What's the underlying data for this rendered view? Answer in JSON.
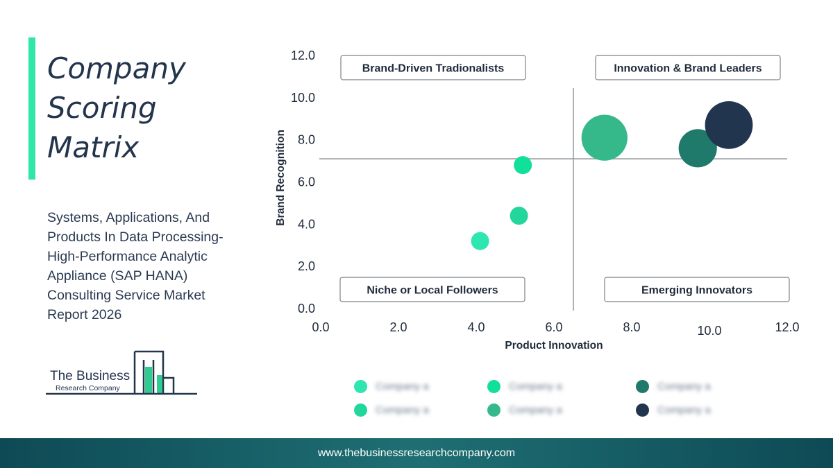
{
  "header": {
    "title_lines": [
      "Company",
      "Scoring",
      "Matrix"
    ],
    "subtitle_lines": [
      "Systems, Applications, And",
      "Products In Data Processing-",
      "High-Performance Analytic",
      "Appliance (SAP HANA)",
      "Consulting Service Market",
      "Report 2026"
    ]
  },
  "logo": {
    "line1": "The Business",
    "line2": "Research Company"
  },
  "colors": {
    "accent": "#2ee6a6",
    "dark_navy": "#23344d",
    "footer": "#0e4a55"
  },
  "chart_data": {
    "type": "scatter",
    "variant": "bubble",
    "xlabel": "Product Innovation",
    "ylabel": "Brand Recognition",
    "xlim": [
      0,
      12
    ],
    "ylim": [
      0,
      12
    ],
    "x_ticks": [
      "0.0",
      "2.0",
      "4.0",
      "6.0",
      "8.0",
      "10.0",
      "12.0"
    ],
    "y_ticks": [
      "0.0",
      "2.0",
      "4.0",
      "6.0",
      "8.0",
      "10.0",
      "12.0"
    ],
    "divider_x": 6.5,
    "divider_y": 7.1,
    "quadrants": {
      "top_left": "Brand-Driven Tradionalists",
      "top_right": "Innovation & Brand Leaders",
      "bottom_left": "Niche or Local Followers",
      "bottom_right": "Emerging Innovators"
    },
    "points": [
      {
        "x": 4.1,
        "y": 3.2,
        "size": 1,
        "color": "#2ee6b0"
      },
      {
        "x": 5.1,
        "y": 4.4,
        "size": 1,
        "color": "#22d69c"
      },
      {
        "x": 5.2,
        "y": 6.8,
        "size": 1,
        "color": "#10e09a"
      },
      {
        "x": 7.3,
        "y": 8.1,
        "size": 6.5,
        "color": "#35b98a"
      },
      {
        "x": 9.7,
        "y": 7.6,
        "size": 4.5,
        "color": "#207a6c"
      },
      {
        "x": 10.5,
        "y": 8.7,
        "size": 7,
        "color": "#22354f"
      }
    ],
    "grid": false
  },
  "legend": {
    "items": [
      {
        "label": "Company a",
        "color": "#2ee6b0"
      },
      {
        "label": "Company a",
        "color": "#10e09a"
      },
      {
        "label": "Company a",
        "color": "#207a6c"
      },
      {
        "label": "Company a",
        "color": "#22d69c"
      },
      {
        "label": "Company a",
        "color": "#35b98a"
      },
      {
        "label": "Company a",
        "color": "#22354f"
      }
    ]
  },
  "footer": {
    "url": "www.thebusinessresearchcompany.com"
  }
}
